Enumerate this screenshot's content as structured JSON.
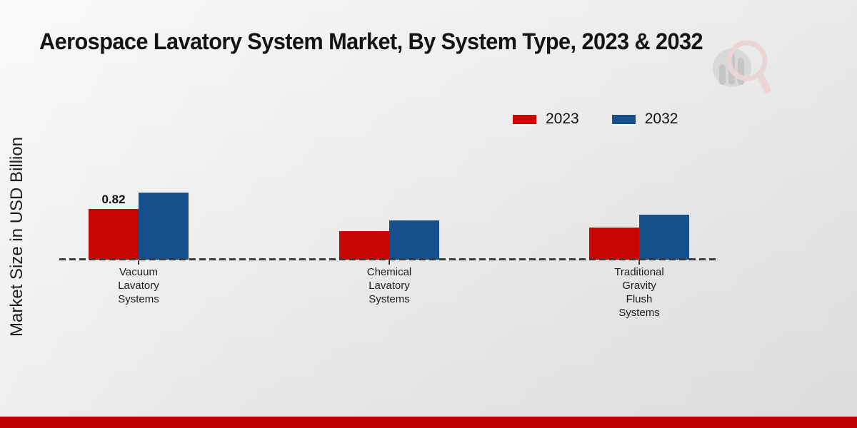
{
  "chart_data": {
    "type": "bar",
    "title": "Aerospace Lavatory System Market, By System Type, 2023 & 2032",
    "ylabel": "Market Size in USD Billion",
    "xlabel": "",
    "unit": "USD Billion",
    "categories": [
      "Vacuum\nLavatory\nSystems",
      "Chemical\nLavatory\nSystems",
      "Traditional\nGravity\nFlush\nSystems"
    ],
    "series": [
      {
        "name": "2023",
        "color": "#c70505",
        "values": [
          0.82,
          0.46,
          0.52
        ],
        "value_labels": [
          "0.82",
          "",
          ""
        ]
      },
      {
        "name": "2032",
        "color": "#15508d",
        "values": [
          1.08,
          0.64,
          0.73
        ],
        "value_labels": [
          "",
          "",
          ""
        ]
      }
    ],
    "gridlines": false,
    "baseline_style": "dashed",
    "legend_position": "top-right"
  },
  "branding": {
    "footer_bar_color": "#bf0000",
    "watermark_icon": "bar-chart-magnifier-logo"
  }
}
